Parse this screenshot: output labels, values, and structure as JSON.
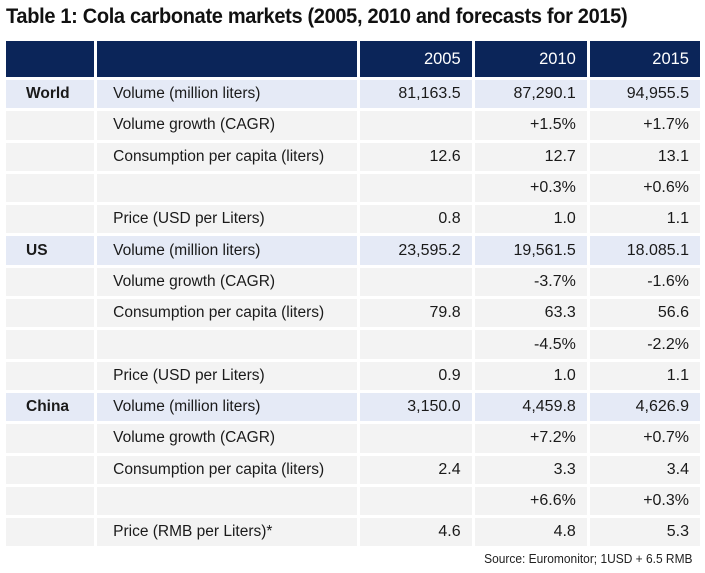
{
  "title": "Table 1: Cola carbonate markets (2005, 2010 and forecasts for 2015)",
  "colors": {
    "header_bg": "#0b2559",
    "volume_row_bg": "#e5eaf6",
    "row_bg": "#f3f3f3"
  },
  "columns": [
    "",
    "",
    "2005",
    "2010",
    "2015"
  ],
  "rows": [
    {
      "region": "World",
      "metric": "Volume (million liters)",
      "values": [
        "81,163.5",
        "87,290.1",
        "94,955.5"
      ],
      "kind": "volume"
    },
    {
      "region": "",
      "metric": "Volume growth (CAGR)",
      "values": [
        "",
        "+1.5%",
        "+1.7%"
      ],
      "kind": "normal"
    },
    {
      "region": "",
      "metric": "Consumption per capita (liters)",
      "values": [
        "12.6",
        "12.7",
        "13.1"
      ],
      "kind": "normal"
    },
    {
      "region": "",
      "metric": "",
      "values": [
        "",
        "+0.3%",
        "+0.6%"
      ],
      "kind": "normal"
    },
    {
      "region": "",
      "metric": "Price (USD per Liters)",
      "values": [
        "0.8",
        "1.0",
        "1.1"
      ],
      "kind": "normal"
    },
    {
      "region": "US",
      "metric": "Volume (million liters)",
      "values": [
        "23,595.2",
        "19,561.5",
        "18.085.1"
      ],
      "kind": "volume"
    },
    {
      "region": "",
      "metric": "Volume growth (CAGR)",
      "values": [
        "",
        "-3.7%",
        "-1.6%"
      ],
      "kind": "normal"
    },
    {
      "region": "",
      "metric": "Consumption per capita (liters)",
      "values": [
        "79.8",
        "63.3",
        "56.6"
      ],
      "kind": "normal"
    },
    {
      "region": "",
      "metric": "",
      "values": [
        "",
        "-4.5%",
        "-2.2%"
      ],
      "kind": "normal"
    },
    {
      "region": "",
      "metric": "Price (USD per Liters)",
      "values": [
        "0.9",
        "1.0",
        "1.1"
      ],
      "kind": "normal"
    },
    {
      "region": "China",
      "metric": "Volume (million liters)",
      "values": [
        "3,150.0",
        "4,459.8",
        "4,626.9"
      ],
      "kind": "volume"
    },
    {
      "region": "",
      "metric": "Volume growth (CAGR)",
      "values": [
        "",
        "+7.2%",
        "+0.7%"
      ],
      "kind": "normal"
    },
    {
      "region": "",
      "metric": "Consumption per capita (liters)",
      "values": [
        "2.4",
        "3.3",
        "3.4"
      ],
      "kind": "normal"
    },
    {
      "region": "",
      "metric": "",
      "values": [
        "",
        "+6.6%",
        "+0.3%"
      ],
      "kind": "normal"
    },
    {
      "region": "",
      "metric": "Price (RMB per Liters)*",
      "values": [
        "4.6",
        "4.8",
        "5.3"
      ],
      "kind": "normal"
    }
  ],
  "source": "Source: Euromonitor; 1USD + 6.5 RMB"
}
